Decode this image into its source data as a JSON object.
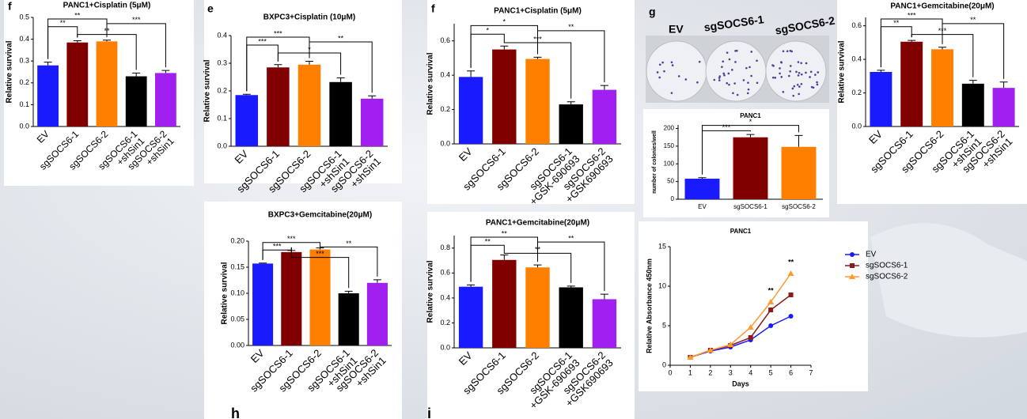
{
  "chart_data": [
    {
      "type": "bar",
      "panel": "f",
      "title": "PANC1+Cisplatin (5μM)",
      "y_label": "Relative survival",
      "categories": [
        "EV",
        "sgSOCS6-1",
        "sgSOCS6-2",
        [
          "sgSOCS6-1",
          "+shSin1"
        ],
        [
          "sgSOCS6-2",
          "+shSin1"
        ]
      ],
      "values": [
        0.28,
        0.385,
        0.39,
        0.23,
        0.245
      ],
      "errors": [
        0.015,
        0.008,
        0.006,
        0.015,
        0.012
      ],
      "colors": [
        "#1a1aff",
        "#800000",
        "#ff8000",
        "#000000",
        "#a020f0"
      ],
      "ylim": [
        0,
        0.5
      ],
      "yticks": [
        {
          "value": 0,
          "label": "0.0"
        },
        0.1,
        0.2,
        0.3,
        0.4,
        0.5
      ],
      "significance": [
        "**",
        "**",
        "**",
        "***"
      ]
    },
    {
      "type": "bar",
      "panel": "e",
      "title": "BXPC3+Cisplatin (10μM)",
      "y_label": "Relative survival",
      "categories": [
        "EV",
        "sgSOCS6-1",
        "sgSOCS6-2",
        [
          "sgSOCS6-1",
          "+shSin1"
        ],
        [
          "sgSOCS6-2",
          "+shSin1"
        ]
      ],
      "values": [
        0.185,
        0.285,
        0.295,
        0.232,
        0.172
      ],
      "errors": [
        0.003,
        0.01,
        0.012,
        0.015,
        0.01
      ],
      "colors": [
        "#1a1aff",
        "#800000",
        "#ff8000",
        "#000000",
        "#a020f0"
      ],
      "ylim": [
        0,
        0.4
      ],
      "yticks": [
        {
          "value": 0,
          "label": "0.0"
        },
        0.1,
        0.2,
        0.3,
        0.4
      ],
      "significance": [
        "***",
        "***",
        "*",
        "**"
      ]
    },
    {
      "type": "bar",
      "title": "BXPC3+Gemcitabine(20μM)",
      "y_label": "Relative survival",
      "categories": [
        "EV",
        "sgSOCS6-1",
        "sgSOCS6-2",
        [
          "sgSOCS6-1",
          "+shSin1"
        ],
        [
          "sgSOCS6-2",
          "+shSin1"
        ]
      ],
      "values": [
        0.157,
        0.179,
        0.184,
        0.1,
        0.12
      ],
      "errors": [
        0.001,
        0.003,
        0.003,
        0.004,
        0.006
      ],
      "colors": [
        "#1a1aff",
        "#800000",
        "#ff8000",
        "#000000",
        "#a020f0"
      ],
      "ylim": [
        0,
        0.2
      ],
      "yticks": [
        {
          "value": 0,
          "label": "0.00"
        },
        0.05,
        {
          "value": 0.1,
          "label": "0.10"
        },
        0.15,
        {
          "value": 0.2,
          "label": "0.20"
        }
      ],
      "significance": [
        "***",
        "***",
        "***",
        "**"
      ]
    },
    {
      "type": "bar",
      "panel": "f",
      "title": "PANC1+Cisplatin (5μM)",
      "y_label": "Relative survival",
      "categories": [
        "EV",
        "sgSOCS6-1",
        "sgSOCS6-2",
        [
          "sgSOCS6-1",
          "+GSK-690693"
        ],
        [
          "sgSOCS6-2",
          "+GSK690693"
        ]
      ],
      "values": [
        0.39,
        0.55,
        0.495,
        0.23,
        0.315
      ],
      "errors": [
        0.035,
        0.02,
        0.01,
        0.015,
        0.025
      ],
      "colors": [
        "#1a1aff",
        "#800000",
        "#ff8000",
        "#000000",
        "#a020f0"
      ],
      "ylim": [
        0,
        0.7
      ],
      "yticks": [
        {
          "value": 0,
          "label": "0.0"
        },
        0.2,
        0.4,
        0.6
      ],
      "significance": [
        "*",
        "*",
        "***",
        "**"
      ]
    },
    {
      "type": "bar",
      "title": "PANC1+Gemcitabine(20μM)",
      "y_label": "Relative survival",
      "categories": [
        "EV",
        "sgSOCS6-1",
        "sgSOCS6-2",
        [
          "sgSOCS6-1",
          "+GSK-690693"
        ],
        [
          "sgSOCS6-2",
          "+GSK690693"
        ]
      ],
      "values": [
        0.49,
        0.705,
        0.645,
        0.485,
        0.39
      ],
      "errors": [
        0.015,
        0.04,
        0.02,
        0.01,
        0.04
      ],
      "colors": [
        "#1a1aff",
        "#800000",
        "#ff8000",
        "#000000",
        "#a020f0"
      ],
      "ylim": [
        0,
        0.9
      ],
      "yticks": [
        {
          "value": 0,
          "label": "0.0"
        },
        0.2,
        0.4,
        0.6,
        0.8
      ],
      "significance": [
        "**",
        "**",
        "**",
        "**"
      ]
    },
    {
      "type": "bar",
      "panel": "g",
      "title": "PANC1",
      "y_label": "number of colonies/well",
      "categories": [
        "EV",
        "sgSOCS6-1",
        "sgSOCS6-2"
      ],
      "values": [
        58,
        175,
        148
      ],
      "errors": [
        3,
        8,
        32
      ],
      "colors": [
        "#1a1aff",
        "#800000",
        "#ff8000"
      ],
      "ylim": [
        0,
        210
      ],
      "yticks": [
        0,
        50,
        100,
        150,
        200
      ],
      "significance": [
        "***",
        "*"
      ]
    },
    {
      "type": "bar",
      "title": "PANC1+Gemcitabine(20μM)",
      "y_label": "Relative survival",
      "categories": [
        "EV",
        "sgSOCS6-1",
        "sgSOCS6-2",
        [
          "sgSOCS6-1",
          "+shSin1"
        ],
        [
          "sgSOCS6-2",
          "+shSin1"
        ]
      ],
      "values": [
        0.325,
        0.505,
        0.46,
        0.255,
        0.23
      ],
      "errors": [
        0.01,
        0.008,
        0.012,
        0.02,
        0.035
      ],
      "colors": [
        "#1a1aff",
        "#800000",
        "#ff8000",
        "#000000",
        "#a020f0"
      ],
      "ylim": [
        0,
        0.65
      ],
      "yticks": [
        {
          "value": 0,
          "label": "0.0"
        },
        0.2,
        0.4,
        0.6
      ],
      "significance": [
        "**",
        "***",
        "***",
        "**"
      ]
    },
    {
      "type": "line",
      "title": "PANC1",
      "y_label": "Relative Absorbance 450nm",
      "x_label": "Days",
      "x": [
        1,
        2,
        3,
        4,
        5,
        6
      ],
      "series": [
        {
          "name": "EV",
          "color": "#1a1aff",
          "values": [
            1,
            1.8,
            2.3,
            3.2,
            5,
            6.2
          ]
        },
        {
          "name": "sgSOCS6-1",
          "color": "#8b1a1a",
          "values": [
            1,
            1.9,
            2.5,
            3.5,
            7,
            8.9
          ]
        },
        {
          "name": "sgSOCS6-2",
          "color": "#ff9a2e",
          "values": [
            1,
            1.9,
            2.6,
            4.8,
            8,
            11.6
          ]
        }
      ],
      "xlim": [
        0,
        7
      ],
      "xticks": [
        0,
        1,
        2,
        3,
        4,
        5,
        6,
        7
      ],
      "ylim": [
        0,
        15
      ],
      "yticks": [
        0,
        5,
        10,
        15
      ],
      "significance": [
        "**",
        "**"
      ]
    }
  ],
  "photo_labels": [
    "EV",
    "sgSOCS6-1",
    "sgSOCS6-2"
  ],
  "partial_labels": [
    "h",
    "i"
  ]
}
